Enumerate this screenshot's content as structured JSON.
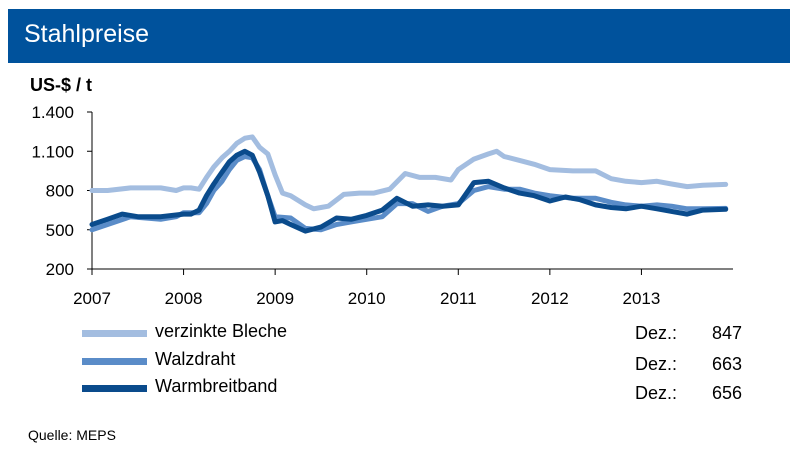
{
  "header": {
    "title": "Stahlpreise"
  },
  "chart_data": {
    "type": "line",
    "ylabel": "US-$ / t",
    "ylim": [
      200,
      1400
    ],
    "yticks": [
      200,
      500,
      800,
      1100,
      1400
    ],
    "ytick_labels": [
      "200",
      "500",
      "800",
      "1.100",
      "1.400"
    ],
    "xlim": [
      2007,
      2014
    ],
    "xticks": [
      2007,
      2008,
      2009,
      2010,
      2011,
      2012,
      2013
    ],
    "xtick_labels": [
      "2007",
      "2008",
      "2009",
      "2010",
      "2011",
      "2012",
      "2013"
    ],
    "grid": false,
    "legend": "bottom",
    "series": [
      {
        "name": "verzinkte Bleche",
        "color": "#a3bde0",
        "x": [
          2007.0,
          2007.17,
          2007.42,
          2007.75,
          2007.92,
          2008.0,
          2008.08,
          2008.17,
          2008.25,
          2008.33,
          2008.42,
          2008.5,
          2008.58,
          2008.67,
          2008.75,
          2008.83,
          2008.92,
          2009.0,
          2009.08,
          2009.17,
          2009.33,
          2009.42,
          2009.5,
          2009.58,
          2009.75,
          2009.92,
          2010.08,
          2010.25,
          2010.42,
          2010.58,
          2010.75,
          2010.92,
          2011.0,
          2011.17,
          2011.33,
          2011.42,
          2011.5,
          2011.67,
          2011.83,
          2012.0,
          2012.25,
          2012.5,
          2012.67,
          2012.83,
          2013.0,
          2013.17,
          2013.33,
          2013.5,
          2013.67,
          2013.92
        ],
        "y": [
          800,
          800,
          820,
          820,
          800,
          820,
          820,
          810,
          900,
          980,
          1050,
          1100,
          1160,
          1200,
          1210,
          1130,
          1080,
          920,
          780,
          760,
          690,
          660,
          670,
          680,
          770,
          780,
          780,
          810,
          930,
          900,
          900,
          880,
          960,
          1040,
          1080,
          1100,
          1060,
          1030,
          1000,
          960,
          950,
          950,
          890,
          870,
          860,
          870,
          850,
          830,
          840,
          847
        ]
      },
      {
        "name": "Walzdraht",
        "color": "#5a8cc8",
        "x": [
          2007.0,
          2007.17,
          2007.42,
          2007.75,
          2007.92,
          2008.0,
          2008.17,
          2008.25,
          2008.33,
          2008.42,
          2008.5,
          2008.58,
          2008.67,
          2008.75,
          2008.83,
          2008.92,
          2009.0,
          2009.17,
          2009.33,
          2009.5,
          2009.67,
          2009.83,
          2010.0,
          2010.17,
          2010.33,
          2010.5,
          2010.67,
          2010.83,
          2011.0,
          2011.17,
          2011.33,
          2011.5,
          2011.67,
          2011.83,
          2012.0,
          2012.25,
          2012.5,
          2012.67,
          2012.83,
          2013.0,
          2013.17,
          2013.33,
          2013.5,
          2013.67,
          2013.92
        ],
        "y": [
          500,
          540,
          600,
          580,
          600,
          630,
          630,
          700,
          800,
          870,
          960,
          1030,
          1060,
          1050,
          960,
          760,
          600,
          590,
          510,
          500,
          540,
          560,
          580,
          600,
          700,
          700,
          640,
          680,
          700,
          800,
          830,
          810,
          810,
          780,
          760,
          740,
          740,
          710,
          690,
          680,
          690,
          680,
          660,
          660,
          663
        ]
      },
      {
        "name": "Warmbreitband",
        "color": "#0a4b8c",
        "x": [
          2007.0,
          2007.17,
          2007.33,
          2007.5,
          2007.75,
          2008.0,
          2008.08,
          2008.17,
          2008.25,
          2008.33,
          2008.42,
          2008.5,
          2008.58,
          2008.67,
          2008.75,
          2008.83,
          2008.92,
          2009.0,
          2009.08,
          2009.17,
          2009.33,
          2009.5,
          2009.67,
          2009.83,
          2010.0,
          2010.17,
          2010.33,
          2010.5,
          2010.67,
          2010.83,
          2011.0,
          2011.17,
          2011.33,
          2011.5,
          2011.67,
          2011.83,
          2012.0,
          2012.17,
          2012.33,
          2012.5,
          2012.67,
          2012.83,
          2013.0,
          2013.17,
          2013.33,
          2013.5,
          2013.67,
          2013.92
        ],
        "y": [
          540,
          580,
          620,
          600,
          600,
          620,
          620,
          650,
          760,
          850,
          940,
          1020,
          1070,
          1100,
          1070,
          940,
          760,
          560,
          570,
          540,
          490,
          520,
          590,
          580,
          610,
          650,
          740,
          680,
          690,
          680,
          690,
          860,
          870,
          820,
          780,
          760,
          720,
          750,
          730,
          690,
          670,
          660,
          680,
          660,
          640,
          620,
          650,
          656
        ]
      }
    ]
  },
  "legend": {
    "month_label": "Dez.:",
    "items": [
      {
        "label": "verzinkte Bleche",
        "value": "847",
        "color": "#a3bde0"
      },
      {
        "label": "Walzdraht",
        "value": "663",
        "color": "#5a8cc8"
      },
      {
        "label": "Warmbreitband",
        "value": "656",
        "color": "#0a4b8c"
      }
    ]
  },
  "source": "Quelle: MEPS"
}
